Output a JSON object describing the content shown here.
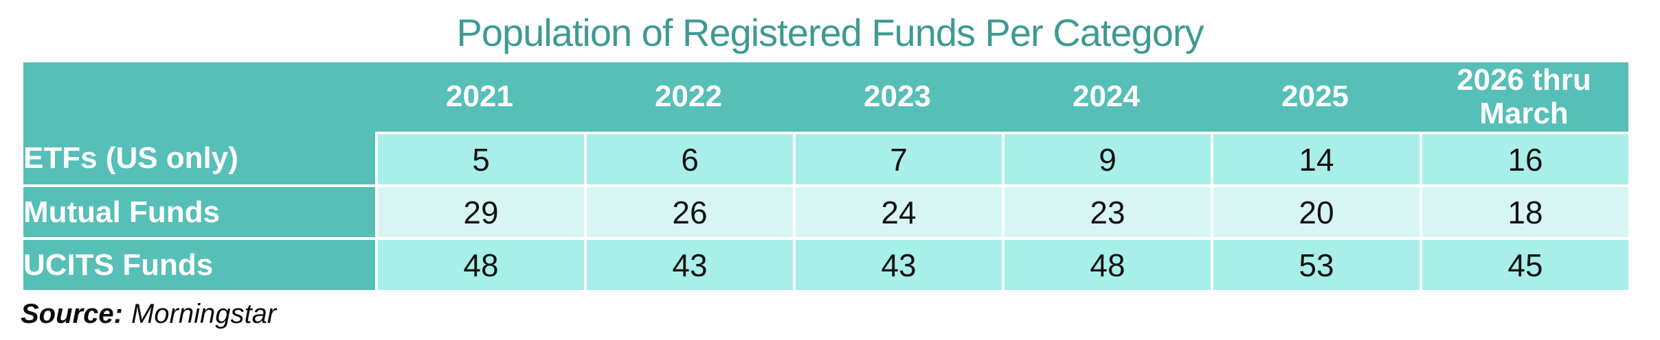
{
  "title": "Population of Registered Funds Per Category",
  "source": {
    "label": "Source:",
    "value": "Morningstar"
  },
  "colors": {
    "title_text": "#3E9A93",
    "header_bg": "#56BFB7",
    "header_text": "#FFFFFF",
    "row_odd_bg": "#A9EFE9",
    "row_even_bg": "#D7F6F3",
    "grid_line": "#FFFFFF",
    "value_text": "#121212"
  },
  "chart_data": {
    "type": "table",
    "title": "Population of Registered Funds Per Category",
    "columns": [
      "",
      "2021",
      "2022",
      "2023",
      "2024",
      "2025",
      "2026 thru March"
    ],
    "rows": [
      {
        "label": "ETFs (US only)",
        "values": [
          5,
          6,
          7,
          9,
          14,
          16
        ]
      },
      {
        "label": "Mutual Funds",
        "values": [
          29,
          26,
          24,
          23,
          20,
          18
        ]
      },
      {
        "label": "UCITS Funds",
        "values": [
          48,
          43,
          43,
          48,
          53,
          45
        ]
      }
    ],
    "source": "Morningstar",
    "legend": null,
    "grid": "white cell separators"
  }
}
